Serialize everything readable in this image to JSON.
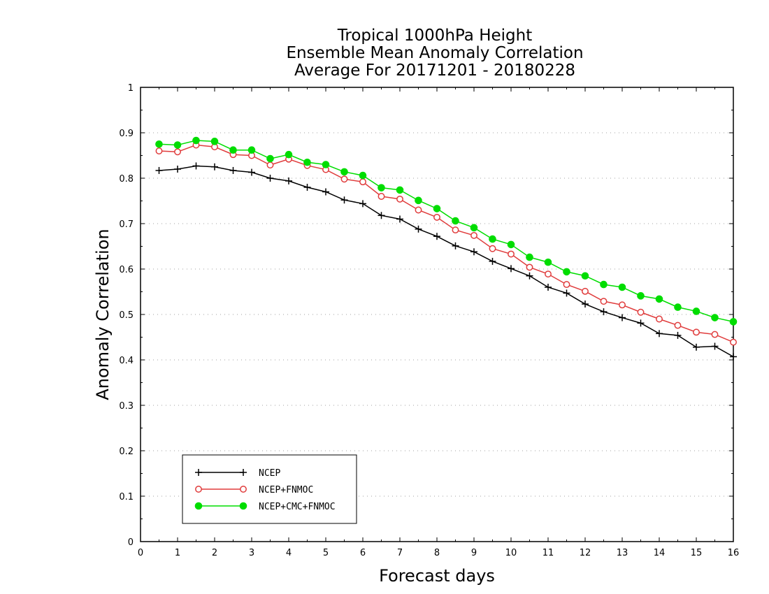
{
  "chart_data": {
    "type": "line",
    "title": [
      "Tropical 1000hPa Height",
      "Ensemble Mean Anomaly Correlation",
      "Average For 20171201 - 20180228"
    ],
    "xlabel": "Forecast days",
    "ylabel": "Anomaly Correlation",
    "xlim": [
      0,
      16
    ],
    "ylim": [
      0,
      1
    ],
    "x_ticks": [
      "0",
      "1",
      "2",
      "3",
      "4",
      "5",
      "6",
      "7",
      "8",
      "9",
      "10",
      "11",
      "12",
      "13",
      "14",
      "15",
      "16"
    ],
    "y_ticks": [
      "0",
      "0.1",
      "0.2",
      "0.3",
      "0.4",
      "0.5",
      "0.6",
      "0.7",
      "0.8",
      "0.9",
      "1"
    ],
    "grid": "horizontal-dotted",
    "legend_position": "bottom-left",
    "x": [
      0.5,
      1.0,
      1.5,
      2.0,
      2.5,
      3.0,
      3.5,
      4.0,
      4.5,
      5.0,
      5.5,
      6.0,
      6.5,
      7.0,
      7.5,
      8.0,
      8.5,
      9.0,
      9.5,
      10.0,
      10.5,
      11.0,
      11.5,
      12.0,
      12.5,
      13.0,
      13.5,
      14.0,
      14.5,
      15.0,
      15.5,
      16.0
    ],
    "series": [
      {
        "name": "NCEP",
        "color": "#000000",
        "marker": "plus",
        "values": [
          0.817,
          0.82,
          0.827,
          0.825,
          0.817,
          0.813,
          0.8,
          0.794,
          0.78,
          0.77,
          0.752,
          0.744,
          0.718,
          0.71,
          0.688,
          0.672,
          0.651,
          0.638,
          0.617,
          0.601,
          0.585,
          0.56,
          0.547,
          0.523,
          0.506,
          0.493,
          0.481,
          0.458,
          0.454,
          0.428,
          0.43,
          0.407
        ]
      },
      {
        "name": "NCEP+FNMOC",
        "color": "#e03c3c",
        "marker": "open-circle",
        "values": [
          0.86,
          0.858,
          0.873,
          0.869,
          0.852,
          0.85,
          0.829,
          0.842,
          0.828,
          0.819,
          0.798,
          0.792,
          0.76,
          0.754,
          0.73,
          0.714,
          0.686,
          0.674,
          0.645,
          0.633,
          0.604,
          0.589,
          0.566,
          0.551,
          0.529,
          0.521,
          0.505,
          0.49,
          0.476,
          0.461,
          0.456,
          0.439
        ]
      },
      {
        "name": "NCEP+CMC+FNMOC",
        "color": "#00dd00",
        "marker": "filled-circle",
        "values": [
          0.875,
          0.873,
          0.883,
          0.881,
          0.862,
          0.862,
          0.843,
          0.852,
          0.835,
          0.83,
          0.814,
          0.806,
          0.779,
          0.774,
          0.751,
          0.733,
          0.706,
          0.691,
          0.666,
          0.654,
          0.626,
          0.615,
          0.594,
          0.585,
          0.566,
          0.56,
          0.541,
          0.534,
          0.516,
          0.507,
          0.493,
          0.484
        ]
      }
    ]
  }
}
